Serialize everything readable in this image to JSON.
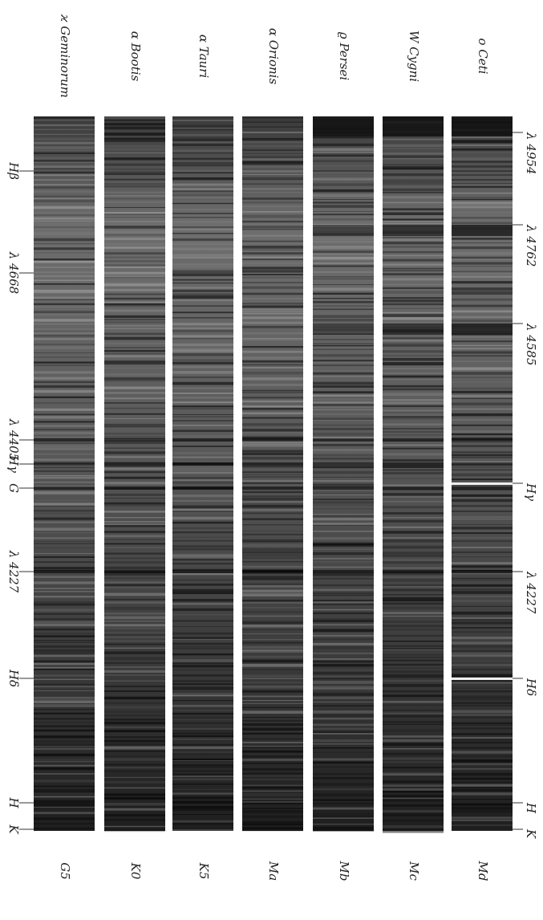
{
  "stars": [
    {
      "name": "ϰ Geminorum",
      "class": "G5"
    },
    {
      "name": "α Bootis",
      "class": "K0"
    },
    {
      "name": "α Tauri",
      "class": "K5"
    },
    {
      "name": "α Orionis",
      "class": "Ma"
    },
    {
      "name": "ϱ Persei",
      "class": "Mb"
    },
    {
      "name": "W Cygni",
      "class": "Mc"
    },
    {
      "name": "o Ceti",
      "class": "Md"
    }
  ],
  "left_lines": [
    "Hβ",
    "λ 4668",
    "λ 4405",
    "Hγ",
    "G",
    "λ 4227",
    "Hδ",
    "H",
    "K"
  ],
  "right_lines": [
    "λ 4954",
    "λ 4762",
    "λ 4585",
    "Hγ",
    "λ 4227",
    "Hδ",
    "H",
    "K"
  ]
}
